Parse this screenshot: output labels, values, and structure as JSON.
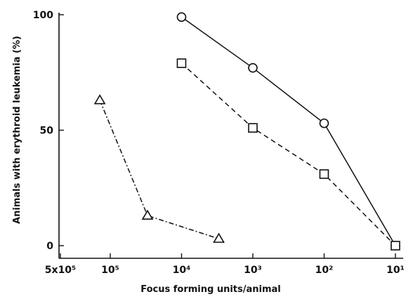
{
  "chart_data": {
    "type": "line",
    "title": "",
    "xlabel": "Focus forming units/animal",
    "ylabel": "Animals with erythroid leukemia (%)",
    "x_scale": "log, reversed",
    "xlim": [
      500000,
      10
    ],
    "ylim": [
      0,
      100
    ],
    "grid": false,
    "x_ticks": [
      {
        "value": 500000,
        "label": "5x10⁵"
      },
      {
        "value": 100000,
        "label": "10⁵"
      },
      {
        "value": 10000,
        "label": "10⁴"
      },
      {
        "value": 1000,
        "label": "10³"
      },
      {
        "value": 100,
        "label": "10²"
      },
      {
        "value": 10,
        "label": "10¹"
      }
    ],
    "y_ticks": [
      {
        "value": 0,
        "label": "0"
      },
      {
        "value": 50,
        "label": "50"
      },
      {
        "value": 100,
        "label": "100"
      }
    ],
    "series": [
      {
        "marker": "circle",
        "line": "solid",
        "x": [
          10000,
          1000,
          100,
          10
        ],
        "y": [
          99,
          77,
          53,
          0
        ]
      },
      {
        "marker": "square",
        "line": "dashed",
        "x": [
          10000,
          1000,
          100,
          10
        ],
        "y": [
          79,
          51,
          31,
          0
        ]
      },
      {
        "marker": "triangle",
        "line": "dash-dot",
        "x": [
          140000,
          30000,
          3000
        ],
        "y": [
          63,
          13,
          3
        ]
      }
    ]
  }
}
